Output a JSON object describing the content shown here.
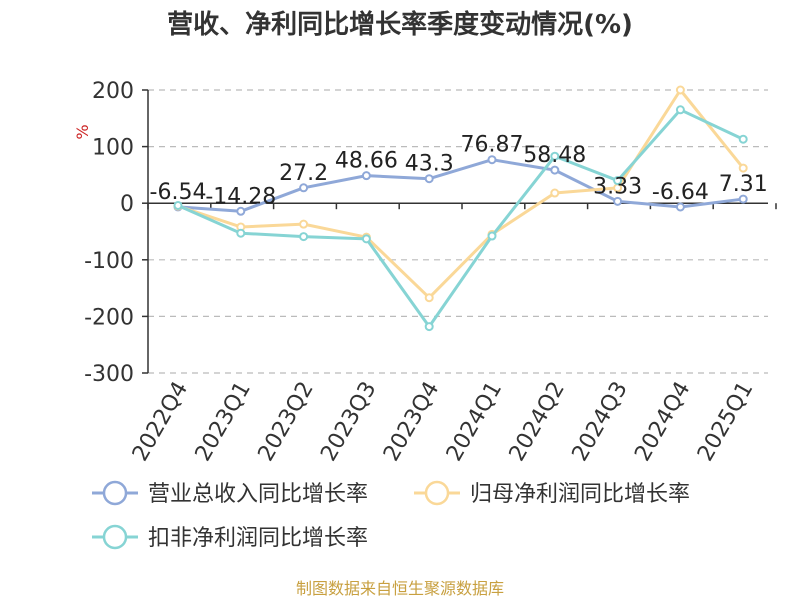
{
  "chart_data": {
    "type": "line",
    "title": "营收、净利同比增长率季度变动情况(%)",
    "ylabel": "%",
    "xlabel": "",
    "categories": [
      "2022Q4",
      "2023Q1",
      "2023Q2",
      "2023Q3",
      "2023Q4",
      "2024Q1",
      "2024Q2",
      "2024Q3",
      "2024Q4",
      "2025Q1"
    ],
    "ylim": [
      -300,
      200
    ],
    "yticks": [
      200,
      100,
      0,
      -100,
      -200,
      -300
    ],
    "ytick_labels": [
      "200",
      "100",
      "0",
      "-100",
      "-200",
      "-300"
    ],
    "grid": true,
    "legend_position": "bottom",
    "series": [
      {
        "name": "营业总收入同比增长率",
        "color": "#8fa8d8",
        "values": [
          -6.54,
          -14.28,
          27.2,
          48.66,
          43.3,
          76.87,
          58.48,
          3.33,
          -6.64,
          7.31
        ],
        "data_labels": [
          "-6.54",
          "-14.28",
          "27.2",
          "48.66",
          "43.3",
          "76.87",
          "58.48",
          "3.33",
          "-6.64",
          "7.31"
        ]
      },
      {
        "name": "归母净利润同比增长率",
        "color": "#fad898",
        "values": [
          -5,
          -42,
          -37,
          -60,
          -167,
          -55,
          18,
          27,
          200,
          62
        ]
      },
      {
        "name": "扣非净利润同比增长率",
        "color": "#86d4d4",
        "values": [
          -4,
          -53,
          -59,
          -63,
          -218,
          -58,
          83,
          40,
          165,
          113
        ]
      }
    ],
    "source": "制图数据来自恒生聚源数据库",
    "colors": {
      "ylabel": "#cc2222",
      "source": "#c8a040",
      "axis": "#333333",
      "grid": "#bbbbbb"
    }
  }
}
